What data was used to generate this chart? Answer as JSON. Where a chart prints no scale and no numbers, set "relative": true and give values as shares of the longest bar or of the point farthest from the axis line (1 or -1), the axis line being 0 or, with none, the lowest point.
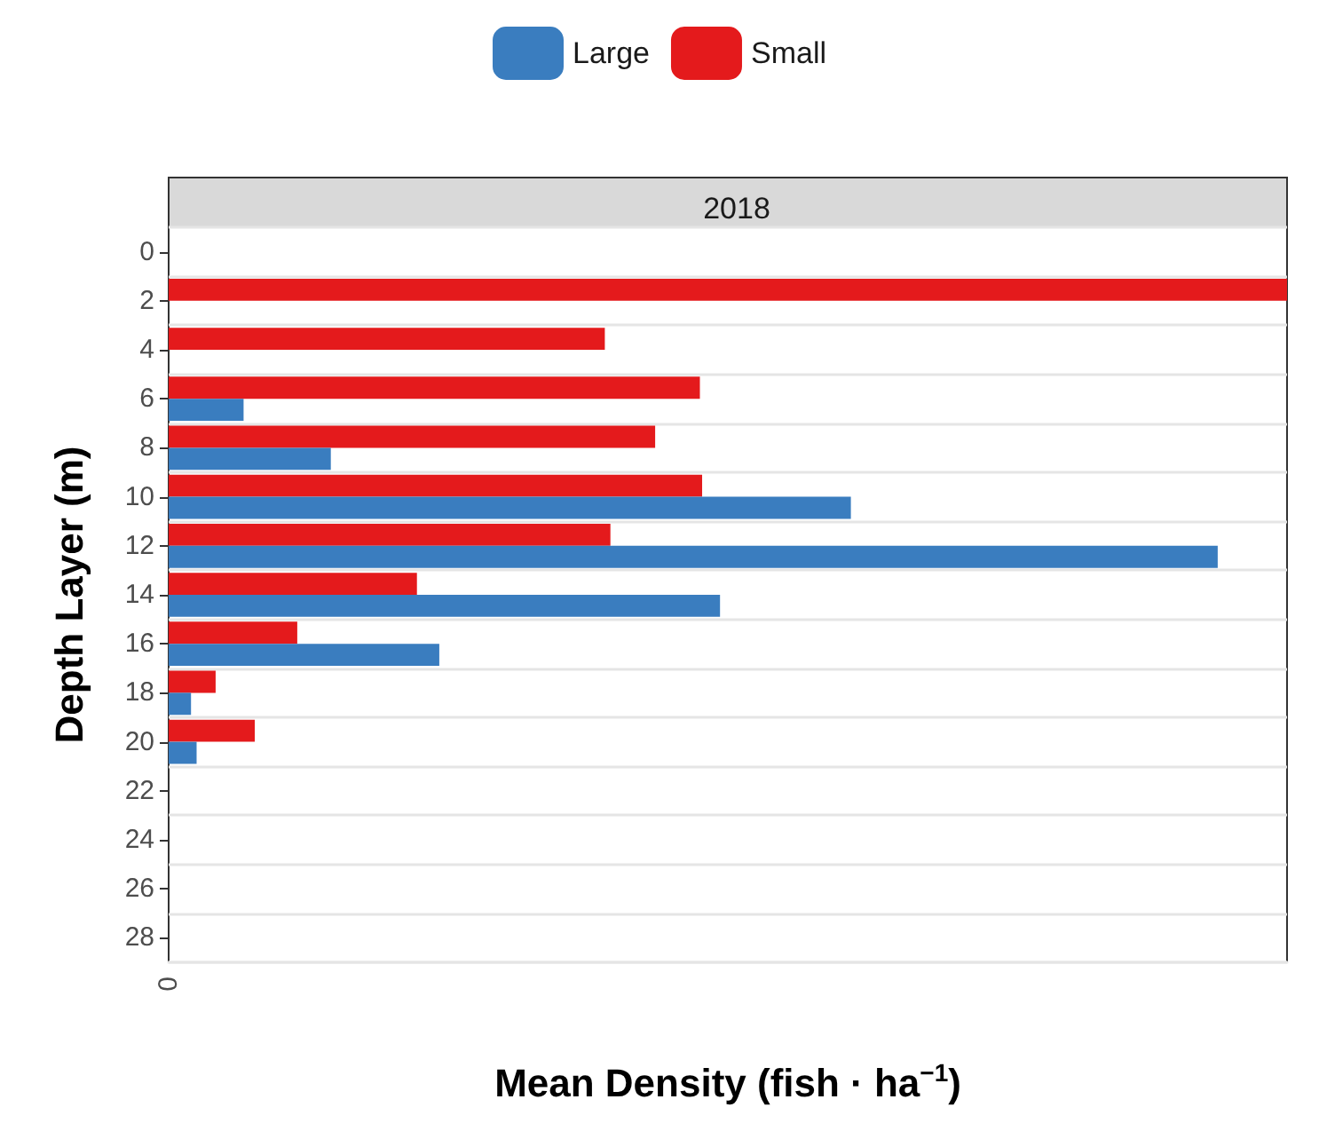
{
  "chart_data": {
    "type": "bar",
    "orientation": "horizontal",
    "relative": true,
    "title": "2018",
    "xlabel": "Mean Density (fish · ha$^{−1}$)",
    "ylabel": "Depth Layer (m)",
    "categories": [
      "0",
      "2",
      "4",
      "6",
      "8",
      "10",
      "12",
      "14",
      "16",
      "18",
      "20",
      "22",
      "24",
      "26",
      "28"
    ],
    "series": [
      {
        "name": "Large",
        "color": "#3a7dbf",
        "values": [
          null,
          null,
          null,
          0.067,
          0.145,
          0.61,
          0.938,
          0.493,
          0.242,
          0.02,
          0.025,
          null,
          null,
          null,
          null
        ]
      },
      {
        "name": "Small",
        "color": "#e41a1c",
        "values": [
          null,
          1,
          0.39,
          0.475,
          0.435,
          0.477,
          0.395,
          0.222,
          0.115,
          0.042,
          0.077,
          null,
          null,
          null,
          null
        ]
      }
    ],
    "annotations": [
      "0"
    ],
    "grid": "y",
    "legend": "top"
  }
}
